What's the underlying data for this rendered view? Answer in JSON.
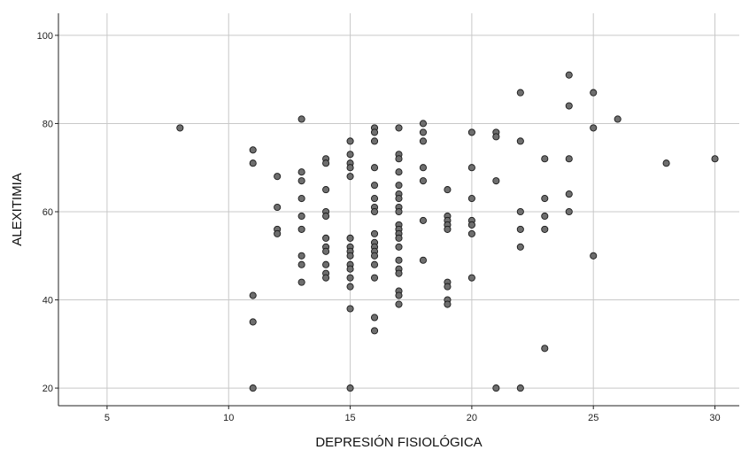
{
  "chart_data": {
    "type": "scatter",
    "xlabel": "DEPRESIÓN FISIOLÓGICA",
    "ylabel": "ALEXITIMIA",
    "xlim": [
      3,
      31
    ],
    "ylim": [
      16,
      105
    ],
    "xticks": [
      5,
      10,
      15,
      20,
      25,
      30
    ],
    "yticks": [
      20,
      40,
      60,
      80,
      100
    ],
    "grid": true,
    "marker_color": "#6e6e6e",
    "points": [
      {
        "x": 8,
        "y": 79
      },
      {
        "x": 11,
        "y": 74
      },
      {
        "x": 11,
        "y": 71
      },
      {
        "x": 11,
        "y": 41
      },
      {
        "x": 11,
        "y": 35
      },
      {
        "x": 11,
        "y": 20
      },
      {
        "x": 12,
        "y": 68
      },
      {
        "x": 12,
        "y": 61
      },
      {
        "x": 12,
        "y": 56
      },
      {
        "x": 12,
        "y": 55
      },
      {
        "x": 13,
        "y": 81
      },
      {
        "x": 13,
        "y": 69
      },
      {
        "x": 13,
        "y": 67
      },
      {
        "x": 13,
        "y": 63
      },
      {
        "x": 13,
        "y": 59
      },
      {
        "x": 13,
        "y": 56
      },
      {
        "x": 13,
        "y": 50
      },
      {
        "x": 13,
        "y": 48
      },
      {
        "x": 13,
        "y": 44
      },
      {
        "x": 14,
        "y": 72
      },
      {
        "x": 14,
        "y": 71
      },
      {
        "x": 14,
        "y": 65
      },
      {
        "x": 14,
        "y": 60
      },
      {
        "x": 14,
        "y": 59
      },
      {
        "x": 14,
        "y": 54
      },
      {
        "x": 14,
        "y": 52
      },
      {
        "x": 14,
        "y": 51
      },
      {
        "x": 14,
        "y": 48
      },
      {
        "x": 14,
        "y": 46
      },
      {
        "x": 14,
        "y": 45
      },
      {
        "x": 15,
        "y": 76
      },
      {
        "x": 15,
        "y": 73
      },
      {
        "x": 15,
        "y": 71
      },
      {
        "x": 15,
        "y": 70
      },
      {
        "x": 15,
        "y": 68
      },
      {
        "x": 15,
        "y": 54
      },
      {
        "x": 15,
        "y": 52
      },
      {
        "x": 15,
        "y": 51
      },
      {
        "x": 15,
        "y": 50
      },
      {
        "x": 15,
        "y": 48
      },
      {
        "x": 15,
        "y": 47
      },
      {
        "x": 15,
        "y": 45
      },
      {
        "x": 15,
        "y": 43
      },
      {
        "x": 15,
        "y": 38
      },
      {
        "x": 15,
        "y": 20
      },
      {
        "x": 16,
        "y": 79
      },
      {
        "x": 16,
        "y": 78
      },
      {
        "x": 16,
        "y": 76
      },
      {
        "x": 16,
        "y": 70
      },
      {
        "x": 16,
        "y": 66
      },
      {
        "x": 16,
        "y": 63
      },
      {
        "x": 16,
        "y": 61
      },
      {
        "x": 16,
        "y": 60
      },
      {
        "x": 16,
        "y": 55
      },
      {
        "x": 16,
        "y": 53
      },
      {
        "x": 16,
        "y": 52
      },
      {
        "x": 16,
        "y": 51
      },
      {
        "x": 16,
        "y": 50
      },
      {
        "x": 16,
        "y": 48
      },
      {
        "x": 16,
        "y": 45
      },
      {
        "x": 16,
        "y": 36
      },
      {
        "x": 16,
        "y": 33
      },
      {
        "x": 17,
        "y": 79
      },
      {
        "x": 17,
        "y": 73
      },
      {
        "x": 17,
        "y": 72
      },
      {
        "x": 17,
        "y": 69
      },
      {
        "x": 17,
        "y": 66
      },
      {
        "x": 17,
        "y": 64
      },
      {
        "x": 17,
        "y": 63
      },
      {
        "x": 17,
        "y": 61
      },
      {
        "x": 17,
        "y": 60
      },
      {
        "x": 17,
        "y": 57
      },
      {
        "x": 17,
        "y": 56
      },
      {
        "x": 17,
        "y": 55
      },
      {
        "x": 17,
        "y": 54
      },
      {
        "x": 17,
        "y": 52
      },
      {
        "x": 17,
        "y": 49
      },
      {
        "x": 17,
        "y": 47
      },
      {
        "x": 17,
        "y": 46
      },
      {
        "x": 17,
        "y": 42
      },
      {
        "x": 17,
        "y": 41
      },
      {
        "x": 17,
        "y": 39
      },
      {
        "x": 18,
        "y": 80
      },
      {
        "x": 18,
        "y": 78
      },
      {
        "x": 18,
        "y": 76
      },
      {
        "x": 18,
        "y": 70
      },
      {
        "x": 18,
        "y": 67
      },
      {
        "x": 18,
        "y": 58
      },
      {
        "x": 18,
        "y": 49
      },
      {
        "x": 19,
        "y": 65
      },
      {
        "x": 19,
        "y": 59
      },
      {
        "x": 19,
        "y": 58
      },
      {
        "x": 19,
        "y": 57
      },
      {
        "x": 19,
        "y": 56
      },
      {
        "x": 19,
        "y": 44
      },
      {
        "x": 19,
        "y": 43
      },
      {
        "x": 19,
        "y": 40
      },
      {
        "x": 19,
        "y": 39
      },
      {
        "x": 20,
        "y": 78
      },
      {
        "x": 20,
        "y": 70
      },
      {
        "x": 20,
        "y": 63
      },
      {
        "x": 20,
        "y": 58
      },
      {
        "x": 20,
        "y": 57
      },
      {
        "x": 20,
        "y": 55
      },
      {
        "x": 20,
        "y": 45
      },
      {
        "x": 21,
        "y": 78
      },
      {
        "x": 21,
        "y": 77
      },
      {
        "x": 21,
        "y": 67
      },
      {
        "x": 21,
        "y": 20
      },
      {
        "x": 22,
        "y": 87
      },
      {
        "x": 22,
        "y": 76
      },
      {
        "x": 22,
        "y": 60
      },
      {
        "x": 22,
        "y": 56
      },
      {
        "x": 22,
        "y": 52
      },
      {
        "x": 22,
        "y": 20
      },
      {
        "x": 23,
        "y": 72
      },
      {
        "x": 23,
        "y": 63
      },
      {
        "x": 23,
        "y": 59
      },
      {
        "x": 23,
        "y": 56
      },
      {
        "x": 23,
        "y": 29
      },
      {
        "x": 24,
        "y": 91
      },
      {
        "x": 24,
        "y": 84
      },
      {
        "x": 24,
        "y": 72
      },
      {
        "x": 24,
        "y": 64
      },
      {
        "x": 24,
        "y": 60
      },
      {
        "x": 25,
        "y": 87
      },
      {
        "x": 25,
        "y": 79
      },
      {
        "x": 25,
        "y": 50
      },
      {
        "x": 26,
        "y": 81
      },
      {
        "x": 28,
        "y": 71
      },
      {
        "x": 30,
        "y": 72
      }
    ]
  }
}
